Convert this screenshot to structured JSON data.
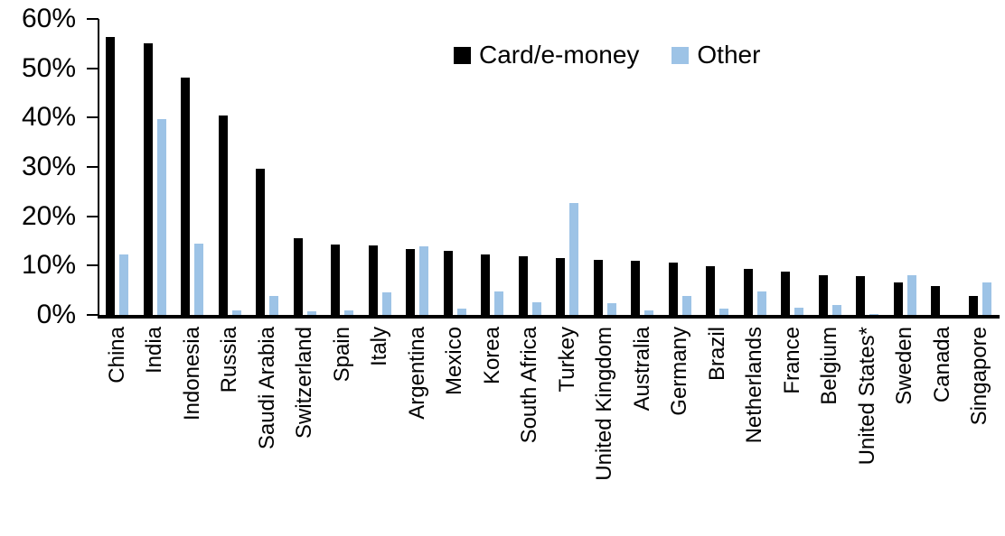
{
  "chart_data": {
    "type": "bar",
    "title": "",
    "xlabel": "",
    "ylabel": "",
    "ylim": [
      0,
      60
    ],
    "y_tick_step": 10,
    "y_tick_labels": [
      "0%",
      "10%",
      "20%",
      "30%",
      "40%",
      "50%",
      "60%"
    ],
    "grid": false,
    "legend_position": "top-center",
    "categories": [
      "China",
      "India",
      "Indonesia",
      "Russia",
      "Saudi Arabia",
      "Switzerland",
      "Spain",
      "Italy",
      "Argentina",
      "Mexico",
      "Korea",
      "South Africa",
      "Turkey",
      "United Kingdom",
      "Australia",
      "Germany",
      "Brazil",
      "Netherlands",
      "France",
      "Belgium",
      "United States*",
      "Sweden",
      "Canada",
      "Singapore"
    ],
    "series": [
      {
        "name": "Card/e-money",
        "color": "#000000",
        "values": [
          56.3,
          55.0,
          48.2,
          40.4,
          29.7,
          15.5,
          14.2,
          14.1,
          13.4,
          12.9,
          12.2,
          11.8,
          11.6,
          11.1,
          10.9,
          10.7,
          9.9,
          9.3,
          8.7,
          8.1,
          7.9,
          6.5,
          5.9,
          3.8
        ]
      },
      {
        "name": "Other",
        "color": "#9DC3E6",
        "values": [
          12.3,
          39.7,
          14.4,
          0.9,
          3.8,
          0.7,
          1.0,
          4.5,
          13.9,
          1.3,
          4.7,
          2.5,
          22.6,
          2.4,
          1.0,
          3.9,
          1.2,
          4.8,
          1.5,
          2.1,
          0.2,
          8.1,
          0.0,
          6.6
        ]
      }
    ]
  }
}
